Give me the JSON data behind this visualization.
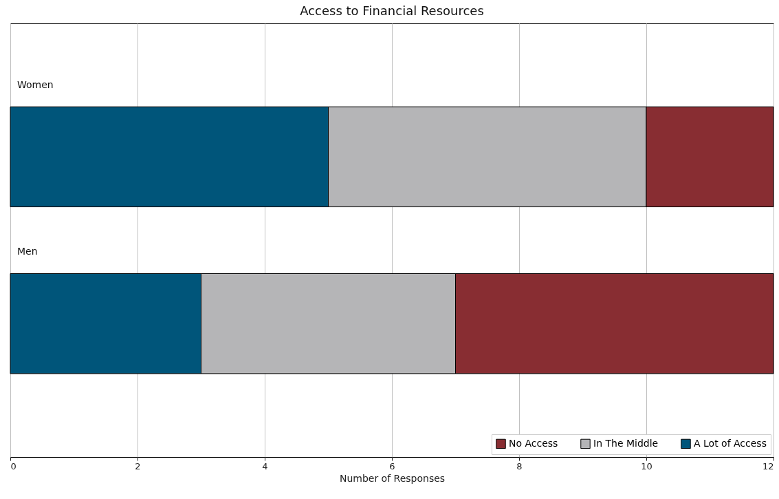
{
  "chart_data": {
    "type": "bar",
    "orientation": "horizontal",
    "stacked": true,
    "title": "Access to Financial Resources",
    "xlabel": "Number of Responses",
    "categories": [
      "Women",
      "Men"
    ],
    "series": [
      {
        "name": "A Lot of Access",
        "color": "#00557a",
        "values": [
          5,
          3
        ]
      },
      {
        "name": "In The Middle",
        "color": "#b5b5b7",
        "values": [
          5,
          4
        ]
      },
      {
        "name": "No Access",
        "color": "#882d32",
        "values": [
          2,
          5
        ]
      }
    ],
    "xlim": [
      0,
      12
    ],
    "xticks": [
      0,
      2,
      4,
      6,
      8,
      10,
      12
    ],
    "grid": "x",
    "legend": "bottom right"
  }
}
